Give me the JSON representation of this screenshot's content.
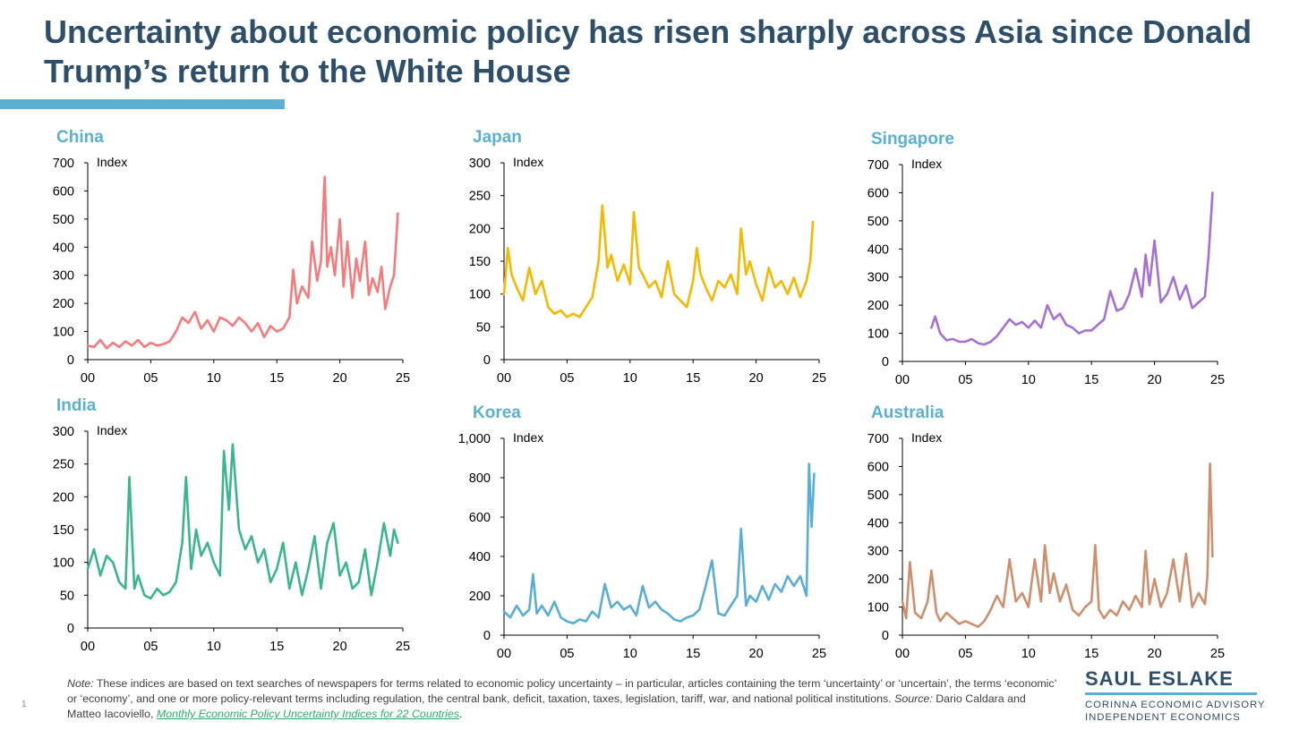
{
  "slide": {
    "title": "Uncertainty about economic policy has risen sharply across Asia since Donald Trump’s return to the White House",
    "accent_color": "#5bb0d1",
    "title_color": "#2e4f6a",
    "slide_number": "1"
  },
  "note": {
    "label": "Note:",
    "text": " These indices are based on text searches of newspapers for terms related to economic policy uncertainty – in particular, articles containing the term ‘uncertainty’ or ‘uncertain’, the terms ‘economic’ or ‘economy’, and one or more policy-relevant terms including regulation, the central bank, deficit, taxation, taxes, legislation, tariff, war, and national political institutions. ",
    "source_label": "Source:",
    "source_text": " Dario Caldara and Matteo Iacoviello, ",
    "link_text": "Monthly Economic Policy Uncertainty Indices for 22 Countries",
    "end": "."
  },
  "brand": {
    "name": "SAUL ESLAKE",
    "line1": "CORINNA ECONOMIC ADVISORY",
    "line2": "INDEPENDENT ECONOMICS"
  },
  "chart_data": [
    {
      "id": "china",
      "type": "line",
      "title": "China",
      "unit": "Index",
      "color": "#f47b7b",
      "x": [
        0,
        0.5,
        1,
        1.5,
        2,
        2.5,
        3,
        3.5,
        4,
        4.5,
        5,
        5.5,
        6,
        6.5,
        7,
        7.5,
        8,
        8.5,
        9,
        9.5,
        10,
        10.5,
        11,
        11.5,
        12,
        12.5,
        13,
        13.5,
        14,
        14.5,
        15,
        15.5,
        16,
        16.3,
        16.6,
        17,
        17.5,
        17.8,
        18.2,
        18.5,
        18.8,
        19,
        19.3,
        19.6,
        20,
        20.3,
        20.6,
        21,
        21.3,
        21.6,
        22,
        22.3,
        22.6,
        23,
        23.3,
        23.6,
        24,
        24.3,
        24.6
      ],
      "y": [
        50,
        45,
        70,
        40,
        60,
        45,
        65,
        50,
        70,
        45,
        60,
        50,
        55,
        65,
        100,
        150,
        130,
        170,
        110,
        140,
        100,
        150,
        140,
        120,
        150,
        130,
        100,
        130,
        80,
        120,
        100,
        110,
        150,
        320,
        200,
        260,
        220,
        420,
        280,
        350,
        650,
        330,
        400,
        300,
        500,
        260,
        420,
        220,
        360,
        280,
        420,
        230,
        290,
        240,
        330,
        180,
        260,
        300,
        520
      ],
      "xticks": [
        "00",
        "05",
        "10",
        "15",
        "20",
        "25"
      ],
      "xlim": [
        0,
        25
      ],
      "yticks": [
        "0",
        "100",
        "200",
        "300",
        "400",
        "500",
        "600",
        "700"
      ],
      "ylim": [
        0,
        700
      ]
    },
    {
      "id": "japan",
      "type": "line",
      "title": "Japan",
      "unit": "Index",
      "color": "#f4b800",
      "x": [
        0,
        0.3,
        0.6,
        1,
        1.5,
        2,
        2.5,
        3,
        3.5,
        4,
        4.5,
        5,
        5.5,
        6,
        6.5,
        7,
        7.5,
        7.8,
        8.2,
        8.5,
        9,
        9.5,
        10,
        10.3,
        10.7,
        11,
        11.5,
        12,
        12.5,
        13,
        13.5,
        14,
        14.5,
        15,
        15.3,
        15.6,
        16,
        16.5,
        17,
        17.5,
        18,
        18.5,
        18.8,
        19.2,
        19.5,
        20,
        20.5,
        21,
        21.5,
        22,
        22.5,
        23,
        23.5,
        24,
        24.3,
        24.5
      ],
      "y": [
        100,
        170,
        130,
        110,
        90,
        140,
        100,
        120,
        80,
        70,
        75,
        65,
        70,
        65,
        80,
        95,
        150,
        235,
        140,
        160,
        120,
        145,
        115,
        225,
        140,
        130,
        110,
        120,
        95,
        150,
        100,
        90,
        80,
        120,
        170,
        130,
        110,
        90,
        120,
        110,
        130,
        100,
        200,
        130,
        150,
        115,
        90,
        140,
        110,
        120,
        100,
        125,
        95,
        120,
        150,
        210
      ],
      "xticks": [
        "00",
        "05",
        "10",
        "15",
        "20",
        "25"
      ],
      "xlim": [
        0,
        25
      ],
      "yticks": [
        "0",
        "50",
        "100",
        "150",
        "200",
        "250",
        "300"
      ],
      "ylim": [
        0,
        300
      ]
    },
    {
      "id": "singapore",
      "type": "line",
      "title": "Singapore",
      "unit": "Index",
      "color": "#a66fd6",
      "x": [
        2.3,
        2.6,
        3,
        3.5,
        4,
        4.5,
        5,
        5.5,
        6,
        6.5,
        7,
        7.5,
        8,
        8.5,
        9,
        9.5,
        10,
        10.5,
        11,
        11.5,
        12,
        12.5,
        13,
        13.5,
        14,
        14.5,
        15,
        15.5,
        16,
        16.5,
        17,
        17.5,
        18,
        18.5,
        19,
        19.3,
        19.6,
        20,
        20.5,
        21,
        21.5,
        22,
        22.5,
        23,
        23.5,
        24,
        24.3,
        24.6
      ],
      "y": [
        120,
        160,
        100,
        75,
        80,
        70,
        70,
        80,
        65,
        60,
        70,
        90,
        120,
        150,
        130,
        140,
        120,
        145,
        120,
        200,
        150,
        170,
        130,
        120,
        100,
        110,
        110,
        130,
        150,
        250,
        180,
        190,
        240,
        330,
        230,
        380,
        270,
        430,
        210,
        240,
        300,
        220,
        270,
        190,
        210,
        230,
        380,
        600
      ],
      "xticks": [
        "00",
        "05",
        "10",
        "15",
        "20",
        "25"
      ],
      "xlim": [
        0,
        25
      ],
      "yticks": [
        "0",
        "100",
        "200",
        "300",
        "400",
        "500",
        "600",
        "700"
      ],
      "ylim": [
        0,
        700
      ]
    },
    {
      "id": "india",
      "type": "line",
      "title": "India",
      "unit": "Index",
      "color": "#3ab58d",
      "x": [
        0,
        0.5,
        1,
        1.5,
        2,
        2.5,
        3,
        3.3,
        3.7,
        4,
        4.5,
        5,
        5.5,
        6,
        6.5,
        7,
        7.5,
        7.8,
        8.2,
        8.6,
        9,
        9.5,
        10,
        10.5,
        10.8,
        11.2,
        11.5,
        12,
        12.5,
        13,
        13.5,
        14,
        14.5,
        15,
        15.5,
        16,
        16.5,
        17,
        17.5,
        18,
        18.5,
        19,
        19.5,
        20,
        20.5,
        21,
        21.5,
        22,
        22.5,
        23,
        23.5,
        24,
        24.3,
        24.6
      ],
      "y": [
        90,
        120,
        80,
        110,
        100,
        70,
        60,
        230,
        60,
        80,
        50,
        45,
        60,
        50,
        55,
        70,
        130,
        230,
        90,
        150,
        110,
        130,
        100,
        80,
        270,
        180,
        280,
        150,
        120,
        140,
        100,
        120,
        70,
        90,
        130,
        60,
        100,
        50,
        90,
        140,
        60,
        130,
        160,
        80,
        100,
        60,
        70,
        120,
        50,
        100,
        160,
        110,
        150,
        130
      ],
      "xticks": [
        "00",
        "05",
        "10",
        "15",
        "20",
        "25"
      ],
      "xlim": [
        0,
        25
      ],
      "yticks": [
        "0",
        "50",
        "100",
        "150",
        "200",
        "250",
        "300"
      ],
      "ylim": [
        0,
        300
      ]
    },
    {
      "id": "korea",
      "type": "line",
      "title": "Korea",
      "unit": "Index",
      "color": "#58aed6",
      "x": [
        0,
        0.5,
        1,
        1.5,
        2,
        2.3,
        2.6,
        3,
        3.5,
        4,
        4.5,
        5,
        5.5,
        6,
        6.5,
        7,
        7.5,
        8,
        8.5,
        9,
        9.5,
        10,
        10.5,
        11,
        11.5,
        12,
        12.5,
        13,
        13.5,
        14,
        14.5,
        15,
        15.5,
        16,
        16.5,
        17,
        17.5,
        18,
        18.5,
        18.8,
        19.2,
        19.5,
        20,
        20.5,
        21,
        21.5,
        22,
        22.5,
        23,
        23.5,
        24,
        24.2,
        24.4,
        24.6
      ],
      "y": [
        120,
        90,
        150,
        100,
        130,
        310,
        110,
        150,
        100,
        170,
        90,
        70,
        60,
        80,
        70,
        120,
        90,
        260,
        140,
        170,
        130,
        150,
        100,
        250,
        140,
        170,
        130,
        110,
        80,
        70,
        90,
        100,
        130,
        250,
        380,
        110,
        100,
        150,
        200,
        540,
        150,
        200,
        170,
        250,
        180,
        260,
        220,
        300,
        250,
        300,
        200,
        870,
        550,
        820
      ],
      "xticks": [
        "00",
        "05",
        "10",
        "15",
        "20",
        "25"
      ],
      "xlim": [
        0,
        25
      ],
      "yticks": [
        "0",
        "200",
        "400",
        "600",
        "800",
        "1,000"
      ],
      "ylim": [
        0,
        1000
      ]
    },
    {
      "id": "australia",
      "type": "line",
      "title": "Australia",
      "unit": "Index",
      "color": "#cd8f6e",
      "x": [
        0,
        0.3,
        0.6,
        1,
        1.5,
        2,
        2.3,
        2.7,
        3,
        3.5,
        4,
        4.5,
        5,
        5.5,
        6,
        6.5,
        7,
        7.5,
        8,
        8.5,
        9,
        9.5,
        10,
        10.5,
        11,
        11.3,
        11.7,
        12,
        12.5,
        13,
        13.5,
        14,
        14.5,
        15,
        15.3,
        15.6,
        16,
        16.5,
        17,
        17.5,
        18,
        18.5,
        19,
        19.3,
        19.6,
        20,
        20.5,
        21,
        21.5,
        22,
        22.5,
        23,
        23.5,
        24,
        24.2,
        24.4,
        24.6
      ],
      "y": [
        120,
        60,
        260,
        80,
        60,
        120,
        230,
        80,
        50,
        80,
        60,
        40,
        50,
        40,
        30,
        50,
        90,
        140,
        100,
        270,
        120,
        150,
        100,
        270,
        120,
        320,
        150,
        220,
        120,
        180,
        90,
        70,
        100,
        120,
        320,
        90,
        60,
        90,
        70,
        120,
        90,
        140,
        100,
        300,
        110,
        200,
        100,
        150,
        270,
        120,
        290,
        100,
        150,
        110,
        210,
        610,
        280
      ],
      "xticks": [
        "00",
        "05",
        "10",
        "15",
        "20",
        "25"
      ],
      "xlim": [
        0,
        25
      ],
      "yticks": [
        "0",
        "100",
        "200",
        "300",
        "400",
        "500",
        "600",
        "700"
      ],
      "ylim": [
        0,
        700
      ]
    }
  ]
}
